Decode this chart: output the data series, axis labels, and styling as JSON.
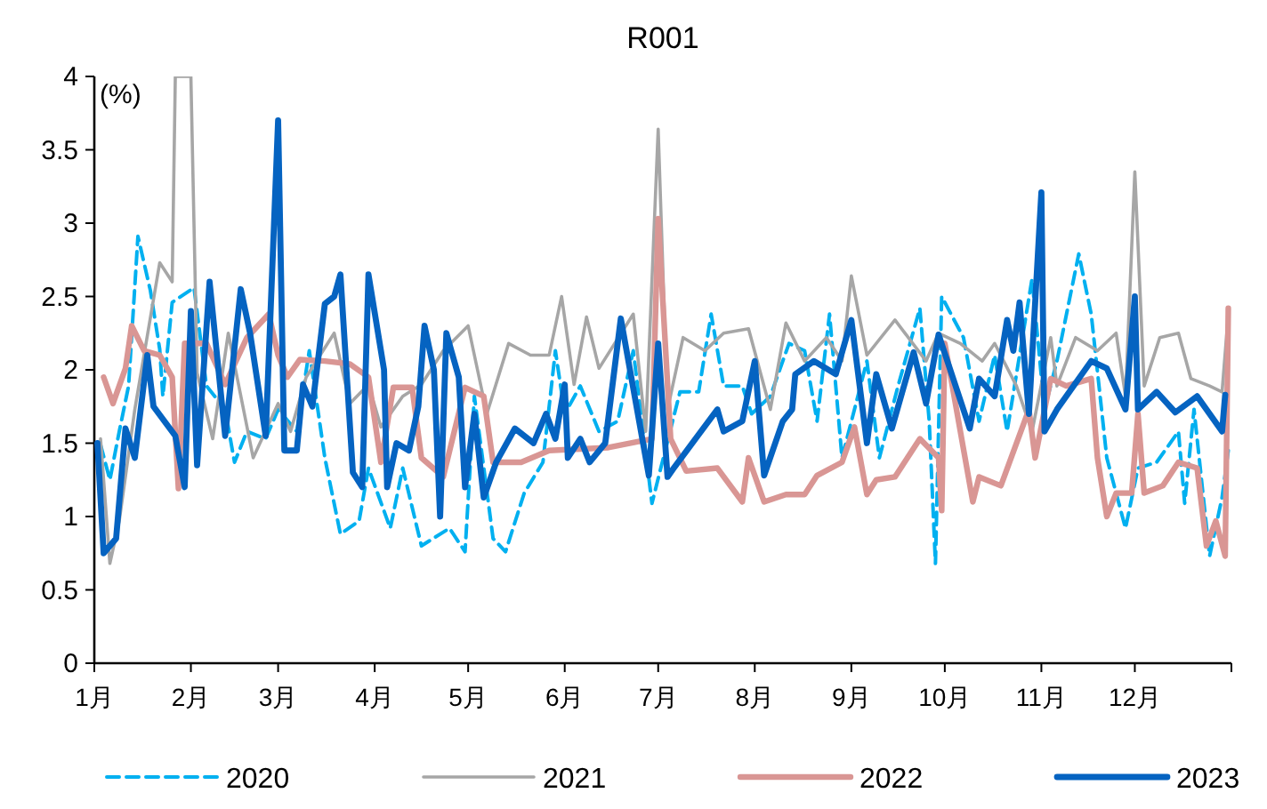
{
  "chart_data": {
    "type": "line",
    "title": "R001",
    "ylabel": "(%)",
    "xlim": [
      "--01-01",
      "--12-31"
    ],
    "ylim": [
      0,
      4
    ],
    "yticks": [
      0,
      0.5,
      1,
      1.5,
      2,
      2.5,
      3,
      3.5,
      4
    ],
    "xticks": [
      {
        "value": "--01-01",
        "label": "1月"
      },
      {
        "value": "--02-01",
        "label": "2月"
      },
      {
        "value": "--03-01",
        "label": "3月"
      },
      {
        "value": "--04-01",
        "label": "4月"
      },
      {
        "value": "--05-01",
        "label": "5月"
      },
      {
        "value": "--06-01",
        "label": "6月"
      },
      {
        "value": "--07-01",
        "label": "7月"
      },
      {
        "value": "--08-01",
        "label": "8月"
      },
      {
        "value": "--09-01",
        "label": "9月"
      },
      {
        "value": "--10-01",
        "label": "10月"
      },
      {
        "value": "--11-01",
        "label": "11月"
      },
      {
        "value": "--12-01",
        "label": "12月"
      }
    ],
    "grid": false,
    "legend": "bottom",
    "marker": "none",
    "series": [
      {
        "name": "2020",
        "color": "#00b0f0",
        "line_style": "dashed",
        "x": [
          "--01-03",
          "--01-06",
          "--01-09",
          "--01-12",
          "--01-15",
          "--01-19",
          "--01-22",
          "--01-23",
          "--01-26",
          "--02-02",
          "--02-06",
          "--02-12",
          "--02-15",
          "--02-19",
          "--02-25",
          "--03-01",
          "--03-07",
          "--03-11",
          "--03-16",
          "--03-21",
          "--03-27",
          "--03-30",
          "--04-06",
          "--04-10",
          "--04-16",
          "--04-25",
          "--04-30",
          "--05-03",
          "--05-09",
          "--05-13",
          "--05-19",
          "--05-25",
          "--05-29",
          "--06-01",
          "--06-06",
          "--06-12",
          "--06-18",
          "--06-23",
          "--06-29",
          "--07-08",
          "--07-14",
          "--07-18",
          "--07-22",
          "--07-28",
          "--07-31",
          "--08-06",
          "--08-12",
          "--08-17",
          "--08-21",
          "--08-25",
          "--08-29",
          "--09-06",
          "--09-10",
          "--09-16",
          "--09-23",
          "--09-26",
          "--09-28",
          "--09-30",
          "--10-07",
          "--10-12",
          "--10-17",
          "--10-21",
          "--10-29",
          "--11-02",
          "--11-06",
          "--11-13",
          "--11-17",
          "--11-22",
          "--11-28",
          "--12-02",
          "--12-08",
          "--12-15",
          "--12-17",
          "--12-20",
          "--12-25",
          "--12-29",
          "--12-31"
        ],
        "values": [
          1.49,
          1.25,
          1.58,
          1.89,
          2.91,
          2.54,
          2.14,
          1.82,
          2.46,
          2.56,
          1.89,
          1.73,
          1.37,
          1.58,
          1.53,
          1.73,
          1.58,
          2.13,
          1.4,
          0.88,
          0.97,
          1.33,
          0.92,
          1.33,
          0.8,
          0.92,
          0.76,
          1.82,
          0.85,
          0.76,
          1.16,
          1.37,
          2.13,
          1.7,
          1.89,
          1.58,
          1.65,
          2.13,
          1.09,
          1.85,
          1.85,
          2.38,
          1.89,
          1.89,
          1.7,
          1.82,
          2.18,
          2.13,
          1.65,
          2.38,
          1.4,
          2.06,
          1.4,
          1.89,
          2.42,
          1.65,
          0.68,
          2.5,
          2.22,
          1.65,
          2.1,
          1.58,
          2.62,
          1.73,
          2.06,
          2.79,
          2.38,
          1.4,
          0.92,
          1.33,
          1.37,
          1.58,
          1.09,
          1.73,
          0.73,
          1.13,
          1.45
        ]
      },
      {
        "name": "2021",
        "color": "#a6a6a6",
        "line_style": "solid",
        "x": [
          "--01-03",
          "--01-06",
          "--01-09",
          "--01-14",
          "--01-22",
          "--01-26",
          "--01-27",
          "--02-01",
          "--02-03",
          "--02-08",
          "--02-13",
          "--02-21",
          "--03-01",
          "--03-05",
          "--03-10",
          "--03-19",
          "--03-24",
          "--03-30",
          "--04-03",
          "--04-10",
          "--04-16",
          "--04-23",
          "--05-01",
          "--05-07",
          "--05-14",
          "--05-21",
          "--05-27",
          "--05-31",
          "--06-04",
          "--06-08",
          "--06-12",
          "--06-23",
          "--06-27",
          "--07-01",
          "--07-04",
          "--07-09",
          "--07-16",
          "--07-22",
          "--07-30",
          "--08-06",
          "--08-11",
          "--08-17",
          "--08-24",
          "--08-29",
          "--09-01",
          "--09-06",
          "--09-15",
          "--09-25",
          "--09-29",
          "--10-06",
          "--10-13",
          "--10-17",
          "--10-24",
          "--10-29",
          "--11-04",
          "--11-06",
          "--11-12",
          "--11-19",
          "--11-25",
          "--11-28",
          "--12-01",
          "--12-04",
          "--12-09",
          "--12-15",
          "--12-19",
          "--12-25",
          "--12-29",
          "--12-31"
        ],
        "values": [
          1.53,
          0.68,
          0.97,
          1.73,
          2.73,
          2.6,
          4,
          4,
          1.98,
          1.53,
          2.25,
          1.4,
          1.77,
          1.58,
          1.95,
          2.25,
          1.77,
          1.9,
          1.61,
          1.82,
          1.9,
          2.13,
          2.3,
          1.7,
          2.18,
          2.1,
          2.1,
          2.5,
          1.9,
          2.36,
          2.01,
          2.38,
          1.58,
          3.64,
          1.73,
          2.22,
          2.13,
          2.25,
          2.28,
          1.73,
          2.32,
          2.06,
          2.22,
          2.06,
          2.64,
          2.1,
          2.34,
          2.06,
          2.25,
          2.18,
          2.06,
          2.18,
          1.89,
          1.58,
          2.22,
          1.89,
          2.22,
          2.13,
          2.25,
          1.82,
          3.35,
          1.89,
          2.22,
          2.25,
          1.94,
          1.89,
          1.85,
          2.38
        ]
      },
      {
        "name": "2022",
        "color": "#d99694",
        "line_style": "solid",
        "x": [
          "--01-04",
          "--01-07",
          "--01-11",
          "--01-13",
          "--01-17",
          "--01-22",
          "--01-26",
          "--01-28",
          "--01-30",
          "--02-06",
          "--02-12",
          "--02-19",
          "--02-26",
          "--03-01",
          "--03-04",
          "--03-08",
          "--03-16",
          "--03-24",
          "--03-30",
          "--04-03",
          "--04-07",
          "--04-13",
          "--04-16",
          "--04-23",
          "--04-30",
          "--05-06",
          "--05-09",
          "--05-18",
          "--05-27",
          "--06-15",
          "--06-29",
          "--07-01",
          "--07-05",
          "--07-10",
          "--07-20",
          "--07-28",
          "--07-30",
          "--08-04",
          "--08-11",
          "--08-17",
          "--08-21",
          "--08-29",
          "--09-02",
          "--09-06",
          "--09-09",
          "--09-15",
          "--09-23",
          "--09-29",
          "--09-30",
          "--10-01",
          "--10-10",
          "--10-12",
          "--10-19",
          "--10-28",
          "--10-30",
          "--11-04",
          "--11-09",
          "--11-17",
          "--11-19",
          "--11-22",
          "--11-25",
          "--11-30",
          "--12-02",
          "--12-04",
          "--12-10",
          "--12-15",
          "--12-21",
          "--12-24",
          "--12-27",
          "--12-30",
          "--12-31"
        ],
        "values": [
          1.95,
          1.77,
          2.01,
          2.3,
          2.13,
          2.1,
          1.95,
          1.19,
          2.18,
          2.18,
          1.9,
          2.22,
          2.38,
          2.1,
          1.95,
          2.07,
          2.06,
          2.04,
          1.95,
          1.37,
          1.88,
          1.88,
          1.4,
          1.27,
          1.88,
          1.82,
          1.37,
          1.37,
          1.45,
          1.47,
          1.53,
          3.03,
          1.53,
          1.31,
          1.33,
          1.1,
          1.4,
          1.1,
          1.15,
          1.15,
          1.28,
          1.37,
          1.61,
          1.15,
          1.25,
          1.27,
          1.53,
          1.4,
          1.04,
          2.18,
          1.1,
          1.27,
          1.21,
          1.73,
          1.4,
          1.94,
          1.89,
          1.94,
          1.4,
          1.0,
          1.16,
          1.16,
          1.7,
          1.16,
          1.21,
          1.37,
          1.33,
          0.8,
          0.97,
          0.73,
          2.42
        ]
      },
      {
        "name": "2023",
        "color": "#0563c1",
        "line_style": "solid",
        "x": [
          "--01-02",
          "--01-04",
          "--01-08",
          "--01-11",
          "--01-14",
          "--01-18",
          "--01-20",
          "--01-27",
          "--01-30",
          "--02-01",
          "--02-03",
          "--02-07",
          "--02-12",
          "--02-17",
          "--02-20",
          "--02-25",
          "--03-01",
          "--03-03",
          "--03-07",
          "--03-09",
          "--03-12",
          "--03-16",
          "--03-19",
          "--03-21",
          "--03-25",
          "--03-28",
          "--03-30",
          "--04-04",
          "--04-05",
          "--04-08",
          "--04-12",
          "--04-15",
          "--04-17",
          "--04-20",
          "--04-22",
          "--04-24",
          "--04-28",
          "--04-30",
          "--05-03",
          "--05-06",
          "--05-10",
          "--05-16",
          "--05-22",
          "--05-26",
          "--05-29",
          "--06-01",
          "--06-02",
          "--06-06",
          "--06-09",
          "--06-14",
          "--06-19",
          "--06-28",
          "--07-01",
          "--07-04",
          "--07-06",
          "--07-13",
          "--07-20",
          "--07-22",
          "--07-28",
          "--08-01",
          "--08-04",
          "--08-10",
          "--08-13",
          "--08-14",
          "--08-20",
          "--08-27",
          "--09-01",
          "--09-06",
          "--09-09",
          "--09-14",
          "--09-21",
          "--09-25",
          "--09-29",
          "--10-09",
          "--10-12",
          "--10-17",
          "--10-21",
          "--10-23",
          "--10-25",
          "--10-28",
          "--11-01",
          "--11-02",
          "--11-06",
          "--11-17",
          "--11-22",
          "--11-28",
          "--12-01",
          "--12-02",
          "--12-08",
          "--12-14",
          "--12-21",
          "--12-25",
          "--12-29",
          "--12-30"
        ],
        "values": [
          1.5,
          0.75,
          0.85,
          1.6,
          1.4,
          2.1,
          1.75,
          1.55,
          1.2,
          2.4,
          1.35,
          2.6,
          1.55,
          2.55,
          2.25,
          1.55,
          3.7,
          1.45,
          1.45,
          1.9,
          1.75,
          2.45,
          2.5,
          2.65,
          1.3,
          1.2,
          2.65,
          2.0,
          1.2,
          1.5,
          1.45,
          1.75,
          2.3,
          2.0,
          1.0,
          2.25,
          1.95,
          1.2,
          1.7,
          1.13,
          1.37,
          1.6,
          1.5,
          1.7,
          1.53,
          1.9,
          1.4,
          1.53,
          1.37,
          1.5,
          2.35,
          1.28,
          2.18,
          1.27,
          1.33,
          1.53,
          1.73,
          1.58,
          1.65,
          2.06,
          1.28,
          1.65,
          1.73,
          1.97,
          2.06,
          1.97,
          2.34,
          1.5,
          1.97,
          1.6,
          2.12,
          1.77,
          2.24,
          1.6,
          1.94,
          1.82,
          2.34,
          2.13,
          2.46,
          1.7,
          3.21,
          1.58,
          1.73,
          2.06,
          2.01,
          1.73,
          2.5,
          1.73,
          1.85,
          1.71,
          1.82,
          1.7,
          1.58,
          1.83
        ]
      }
    ]
  }
}
